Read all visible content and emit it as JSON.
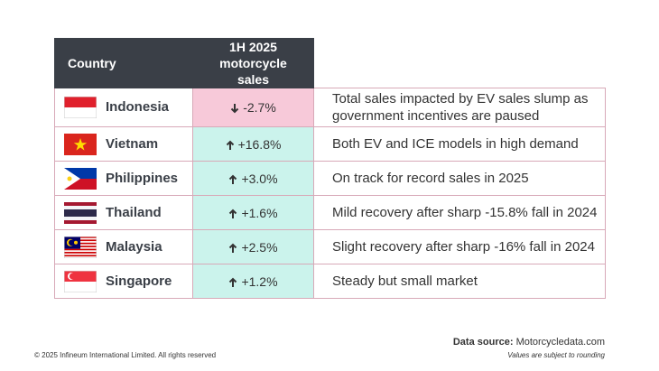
{
  "table": {
    "header": [
      "Country",
      "1H 2025 motorcycle sales"
    ],
    "rows": [
      {
        "country": "Indonesia",
        "change": "-2.7%",
        "note": "Total sales impacted by EV sales slump as government incentives are paused"
      },
      {
        "country": "Vietnam",
        "change": "+16.8%",
        "note": "Both EV and ICE models in high demand"
      },
      {
        "country": "Philippines",
        "change": "+3.0%",
        "note": "On track for record sales in 2025"
      },
      {
        "country": "Thailand",
        "change": "+1.6%",
        "note": "Mild recovery after sharp -15.8% fall in 2024"
      },
      {
        "country": "Malaysia",
        "change": "+2.5%",
        "note": "Slight recovery after sharp -16% fall in 2024"
      },
      {
        "country": "Singapore",
        "change": "+1.2%",
        "note": "Steady but small market"
      }
    ]
  },
  "footer": {
    "copyright": "© 2025 Infineum International Limited. All rights reserved",
    "source_label": "Data source:",
    "source": "Motorcycledata.com",
    "note": "Values are subject to rounding"
  }
}
